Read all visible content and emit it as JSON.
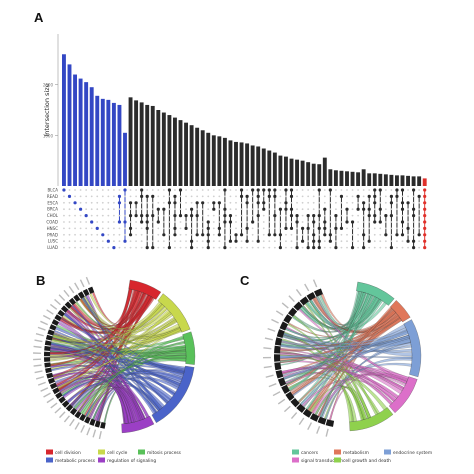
{
  "panels": {
    "a": "A",
    "b": "B",
    "c": "C"
  },
  "colors": {
    "highlight": "#3347c4",
    "bars": "#2b2b2b",
    "accent": "#e0302a",
    "dot_off": "#d0d0d0"
  },
  "chart_data": [
    {
      "type": "bar",
      "subtype": "upset",
      "title": "",
      "ylabel": "Intersection size",
      "ylim": [
        0,
        3000
      ],
      "yticks": [
        1000,
        2000
      ],
      "sets": [
        "BLCA",
        "READ",
        "ESCA",
        "BRCA",
        "CHOL",
        "COAD",
        "HNSC",
        "PRAD",
        "LUSC",
        "LUAD"
      ],
      "values": [
        2600,
        2400,
        2200,
        2120,
        2050,
        1950,
        1780,
        1720,
        1700,
        1640,
        1600,
        1050,
        1750,
        1690,
        1650,
        1600,
        1580,
        1500,
        1450,
        1400,
        1350,
        1300,
        1250,
        1200,
        1150,
        1100,
        1050,
        1000,
        980,
        950,
        900,
        870,
        860,
        840,
        800,
        780,
        740,
        700,
        660,
        600,
        580,
        540,
        520,
        500,
        470,
        440,
        430,
        560,
        330,
        310,
        300,
        290,
        280,
        270,
        330,
        250,
        250,
        240,
        230,
        220,
        210,
        210,
        200,
        190,
        190,
        150
      ],
      "highlight_count": 12,
      "accent_last": true
    },
    {
      "type": "chord",
      "legend": [
        "cell division",
        "cell cycle",
        "mitosis process",
        "metabolic process",
        "regulation of signaling"
      ],
      "category_colors": [
        "#d7262d",
        "#c8d84c",
        "#59c15a",
        "#4a63c9",
        "#9b3fc5"
      ],
      "category_sizes": [
        0.12,
        0.16,
        0.12,
        0.24,
        0.12
      ]
    },
    {
      "type": "chord",
      "legend": [
        "cancers",
        "metabolism",
        "endocrine system",
        "signal transduction",
        "cell growth and death"
      ],
      "category_colors": [
        "#63c69b",
        "#e0775a",
        "#7d9fd6",
        "#dc6fc9",
        "#8fd14d"
      ],
      "category_sizes": [
        0.14,
        0.08,
        0.2,
        0.14,
        0.16
      ]
    }
  ]
}
